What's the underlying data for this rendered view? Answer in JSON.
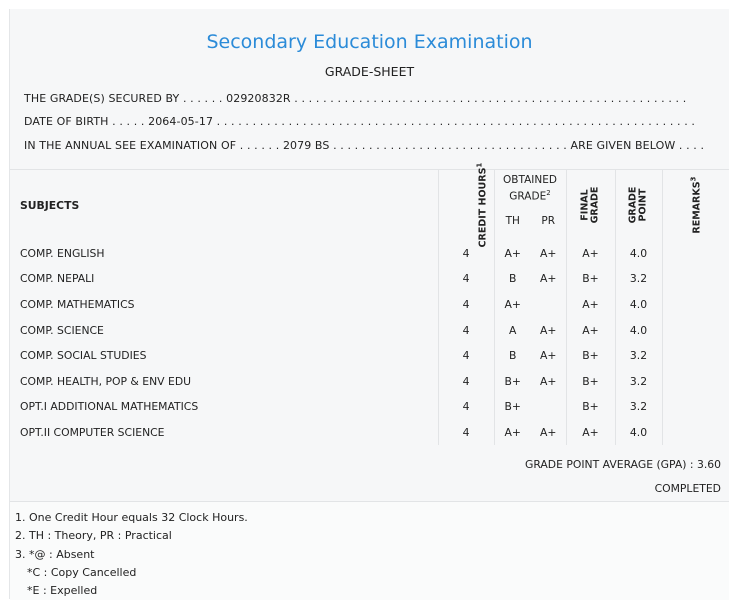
{
  "header": {
    "exam_title": "Secondary Education Examination",
    "sheet_title": "GRADE-SHEET"
  },
  "info": {
    "secured_by_label": "THE GRADE(S) SECURED BY",
    "secured_by_value": "02920832R",
    "dob_label": "DATE OF BIRTH",
    "dob_value": "2064-05-17",
    "exam_label": "IN THE ANNUAL SEE EXAMINATION OF",
    "exam_value": "2079 BS",
    "exam_suffix": "ARE GIVEN BELOW"
  },
  "table": {
    "headers": {
      "subjects": "SUBJECTS",
      "credit_hours": "CREDIT HOURS",
      "credit_sup": "1",
      "obtained_grade_line1": "OBTAINED",
      "obtained_grade_line2": "GRADE",
      "obtained_sup": "2",
      "th": "TH",
      "pr": "PR",
      "final_grade_line1": "FINAL",
      "final_grade_line2": "GRADE",
      "grade_point_line1": "GRADE",
      "grade_point_line2": "POINT",
      "remarks": "REMARKS",
      "remarks_sup": "3"
    },
    "rows": [
      {
        "subject": "COMP. ENGLISH",
        "credit": "4",
        "th": "A+",
        "pr": "A+",
        "final": "A+",
        "gp": "4.0",
        "remarks": ""
      },
      {
        "subject": "COMP. NEPALI",
        "credit": "4",
        "th": "B",
        "pr": "A+",
        "final": "B+",
        "gp": "3.2",
        "remarks": ""
      },
      {
        "subject": "COMP. MATHEMATICS",
        "credit": "4",
        "th": "A+",
        "pr": "",
        "final": "A+",
        "gp": "4.0",
        "remarks": ""
      },
      {
        "subject": "COMP. SCIENCE",
        "credit": "4",
        "th": "A",
        "pr": "A+",
        "final": "A+",
        "gp": "4.0",
        "remarks": ""
      },
      {
        "subject": "COMP. SOCIAL STUDIES",
        "credit": "4",
        "th": "B",
        "pr": "A+",
        "final": "B+",
        "gp": "3.2",
        "remarks": ""
      },
      {
        "subject": "COMP. HEALTH, POP & ENV EDU",
        "credit": "4",
        "th": "B+",
        "pr": "A+",
        "final": "B+",
        "gp": "3.2",
        "remarks": ""
      },
      {
        "subject": "OPT.I ADDITIONAL MATHEMATICS",
        "credit": "4",
        "th": "B+",
        "pr": "",
        "final": "B+",
        "gp": "3.2",
        "remarks": ""
      },
      {
        "subject": "OPT.II COMPUTER SCIENCE",
        "credit": "4",
        "th": "A+",
        "pr": "A+",
        "final": "A+",
        "gp": "4.0",
        "remarks": ""
      }
    ]
  },
  "summary": {
    "gpa_text": "GRADE POINT AVERAGE (GPA) : 3.60",
    "status": "COMPLETED"
  },
  "footnotes": {
    "n1": "1. One Credit Hour equals 32 Clock Hours.",
    "n2": "2. TH : Theory, PR : Practical",
    "n3": "3. *@ : Absent",
    "n4": "*C : Copy Cancelled",
    "n5": "*E : Expelled"
  },
  "colors": {
    "title_blue": "#2b8bd8",
    "panel": "#f6f7f8",
    "grid": "#e2e4e6"
  }
}
